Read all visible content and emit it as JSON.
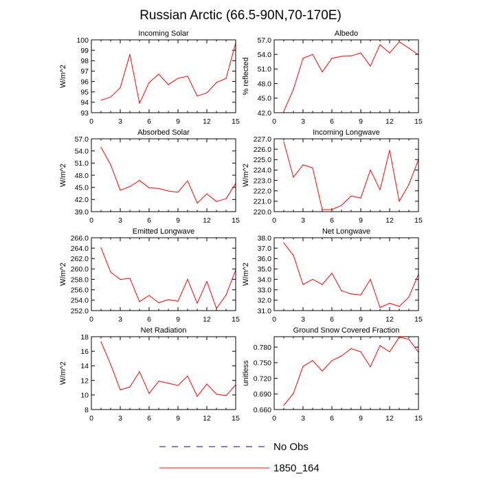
{
  "figure": {
    "title": "Russian Arctic (66.5-90N,70-170E)"
  },
  "legend": [
    {
      "label": "No Obs",
      "color": "#000080",
      "dash": true
    },
    {
      "label": "1850_164",
      "color": "#ff0000",
      "dash": false
    }
  ],
  "chart_data": [
    {
      "type": "line",
      "title": "Incoming Solar",
      "ylabel": "W/m^2",
      "xlim": [
        0,
        15
      ],
      "ylim": [
        93,
        100
      ],
      "xticks": [
        0,
        3,
        6,
        9,
        12,
        15
      ],
      "yticks": [
        "93",
        "94",
        "95",
        "96",
        "97",
        "98",
        "99",
        "100"
      ],
      "series": [
        {
          "color": "#ff0000",
          "x": [
            1,
            2,
            3,
            4,
            5,
            6,
            7,
            8,
            9,
            10,
            11,
            12,
            13,
            14,
            15
          ],
          "y": [
            94.2,
            94.5,
            95.4,
            98.6,
            93.9,
            95.9,
            96.7,
            95.7,
            96.3,
            96.5,
            94.6,
            94.9,
            95.9,
            96.3,
            99.7
          ]
        }
      ]
    },
    {
      "type": "line",
      "title": "Albedo",
      "ylabel": "% reflected",
      "xlim": [
        0,
        15
      ],
      "ylim": [
        42,
        57
      ],
      "xticks": [
        0,
        3,
        6,
        9,
        12,
        15
      ],
      "yticks": [
        "42.0",
        "45.0",
        "48.0",
        "51.0",
        "54.0",
        "57.0"
      ],
      "series": [
        {
          "color": "#ff0000",
          "x": [
            1,
            2,
            3,
            4,
            5,
            6,
            7,
            8,
            9,
            10,
            11,
            12,
            13,
            14,
            15
          ],
          "y": [
            42.3,
            46.8,
            53.2,
            54.0,
            50.4,
            53.2,
            53.6,
            53.7,
            54.3,
            51.6,
            56.0,
            54.3,
            56.6,
            55.3,
            53.9
          ]
        }
      ]
    },
    {
      "type": "line",
      "title": "Absorbed Solar",
      "ylabel": "W/m^2",
      "xlim": [
        0,
        15
      ],
      "ylim": [
        39,
        57
      ],
      "xticks": [
        0,
        3,
        6,
        9,
        12,
        15
      ],
      "yticks": [
        "39.0",
        "42.0",
        "45.0",
        "48.0",
        "51.0",
        "54.0",
        "57.0"
      ],
      "series": [
        {
          "color": "#ff0000",
          "x": [
            1,
            2,
            3,
            4,
            5,
            6,
            7,
            8,
            9,
            10,
            11,
            12,
            13,
            14,
            15
          ],
          "y": [
            54.9,
            50.6,
            44.3,
            45.2,
            46.7,
            44.9,
            44.7,
            44.1,
            43.8,
            46.6,
            41.1,
            43.4,
            41.5,
            42.2,
            46.0
          ]
        }
      ]
    },
    {
      "type": "line",
      "title": "Incoming Longwave",
      "ylabel": "W/m^2",
      "xlim": [
        0,
        15
      ],
      "ylim": [
        220,
        227
      ],
      "xticks": [
        0,
        3,
        6,
        9,
        12,
        15
      ],
      "yticks": [
        "220.0",
        "221.0",
        "222.0",
        "223.0",
        "224.0",
        "225.0",
        "226.0",
        "227.0"
      ],
      "series": [
        {
          "color": "#ff0000",
          "x": [
            1,
            2,
            3,
            4,
            5,
            6,
            7,
            8,
            9,
            10,
            11,
            12,
            13,
            14,
            15
          ],
          "y": [
            226.7,
            223.3,
            224.5,
            224.2,
            220.2,
            220.2,
            220.6,
            221.5,
            221.3,
            224.0,
            222.1,
            225.9,
            221.0,
            222.6,
            225.0
          ]
        }
      ]
    },
    {
      "type": "line",
      "title": "Emitted Longwave",
      "ylabel": "W/m^2",
      "xlim": [
        0,
        15
      ],
      "ylim": [
        252,
        266
      ],
      "xticks": [
        0,
        3,
        6,
        9,
        12,
        15
      ],
      "yticks": [
        "252.0",
        "254.0",
        "256.0",
        "258.0",
        "260.0",
        "262.0",
        "264.0",
        "266.0"
      ],
      "series": [
        {
          "color": "#ff0000",
          "x": [
            1,
            2,
            3,
            4,
            5,
            6,
            7,
            8,
            9,
            10,
            11,
            12,
            13,
            14,
            15
          ],
          "y": [
            264.1,
            259.4,
            258.0,
            258.2,
            253.7,
            254.9,
            253.5,
            254.1,
            253.8,
            258.0,
            253.4,
            257.6,
            252.4,
            255.0,
            259.8
          ]
        }
      ]
    },
    {
      "type": "line",
      "title": "Net Longwave",
      "ylabel": "W/m^2",
      "xlim": [
        0,
        15
      ],
      "ylim": [
        31,
        38
      ],
      "xticks": [
        0,
        3,
        6,
        9,
        12,
        15
      ],
      "yticks": [
        "31.0",
        "32.0",
        "33.0",
        "34.0",
        "35.0",
        "36.0",
        "37.0",
        "38.0"
      ],
      "series": [
        {
          "color": "#ff0000",
          "x": [
            1,
            2,
            3,
            4,
            5,
            6,
            7,
            8,
            9,
            10,
            11,
            12,
            13,
            14,
            15
          ],
          "y": [
            37.5,
            36.3,
            33.5,
            34.0,
            33.5,
            34.6,
            32.9,
            32.6,
            32.5,
            34.0,
            31.3,
            31.7,
            31.4,
            32.3,
            34.5
          ]
        }
      ]
    },
    {
      "type": "line",
      "title": "Net Radiation",
      "ylabel": "W/m^2",
      "xlim": [
        0,
        15
      ],
      "ylim": [
        8,
        18
      ],
      "xticks": [
        0,
        3,
        6,
        9,
        12,
        15
      ],
      "yticks": [
        "8",
        "10",
        "12",
        "14",
        "16",
        "18"
      ],
      "series": [
        {
          "color": "#ff0000",
          "x": [
            1,
            2,
            3,
            4,
            5,
            6,
            7,
            8,
            9,
            10,
            11,
            12,
            13,
            14,
            15
          ],
          "y": [
            17.3,
            14.2,
            10.7,
            11.1,
            13.2,
            10.2,
            11.9,
            11.6,
            11.3,
            12.6,
            9.8,
            11.5,
            10.1,
            9.9,
            11.4
          ]
        }
      ]
    },
    {
      "type": "line",
      "title": "Ground Snow Covered Fraction",
      "ylabel": "unitless",
      "xlim": [
        0,
        15
      ],
      "ylim": [
        0.66,
        0.8
      ],
      "xticks": [
        0,
        3,
        6,
        9,
        12,
        15
      ],
      "yticks": [
        "0.660",
        "0.690",
        "0.720",
        "0.750",
        "0.780"
      ],
      "series": [
        {
          "color": "#ff0000",
          "x": [
            1,
            2,
            3,
            4,
            5,
            6,
            7,
            8,
            9,
            10,
            11,
            12,
            13,
            14,
            15
          ],
          "y": [
            0.668,
            0.691,
            0.743,
            0.754,
            0.734,
            0.754,
            0.763,
            0.777,
            0.771,
            0.742,
            0.783,
            0.771,
            0.799,
            0.795,
            0.77
          ]
        }
      ]
    }
  ]
}
